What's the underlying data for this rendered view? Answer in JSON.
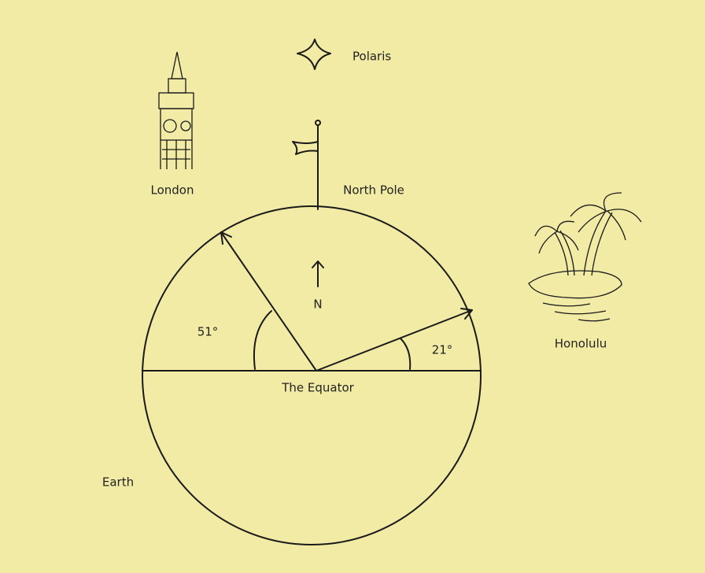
{
  "labels": {
    "polaris": "Polaris",
    "london": "London",
    "north_pole": "North Pole",
    "north": "N",
    "london_angle": "51°",
    "honolulu_angle": "21°",
    "equator": "The Equator",
    "honolulu": "Honolulu",
    "earth": "Earth"
  }
}
